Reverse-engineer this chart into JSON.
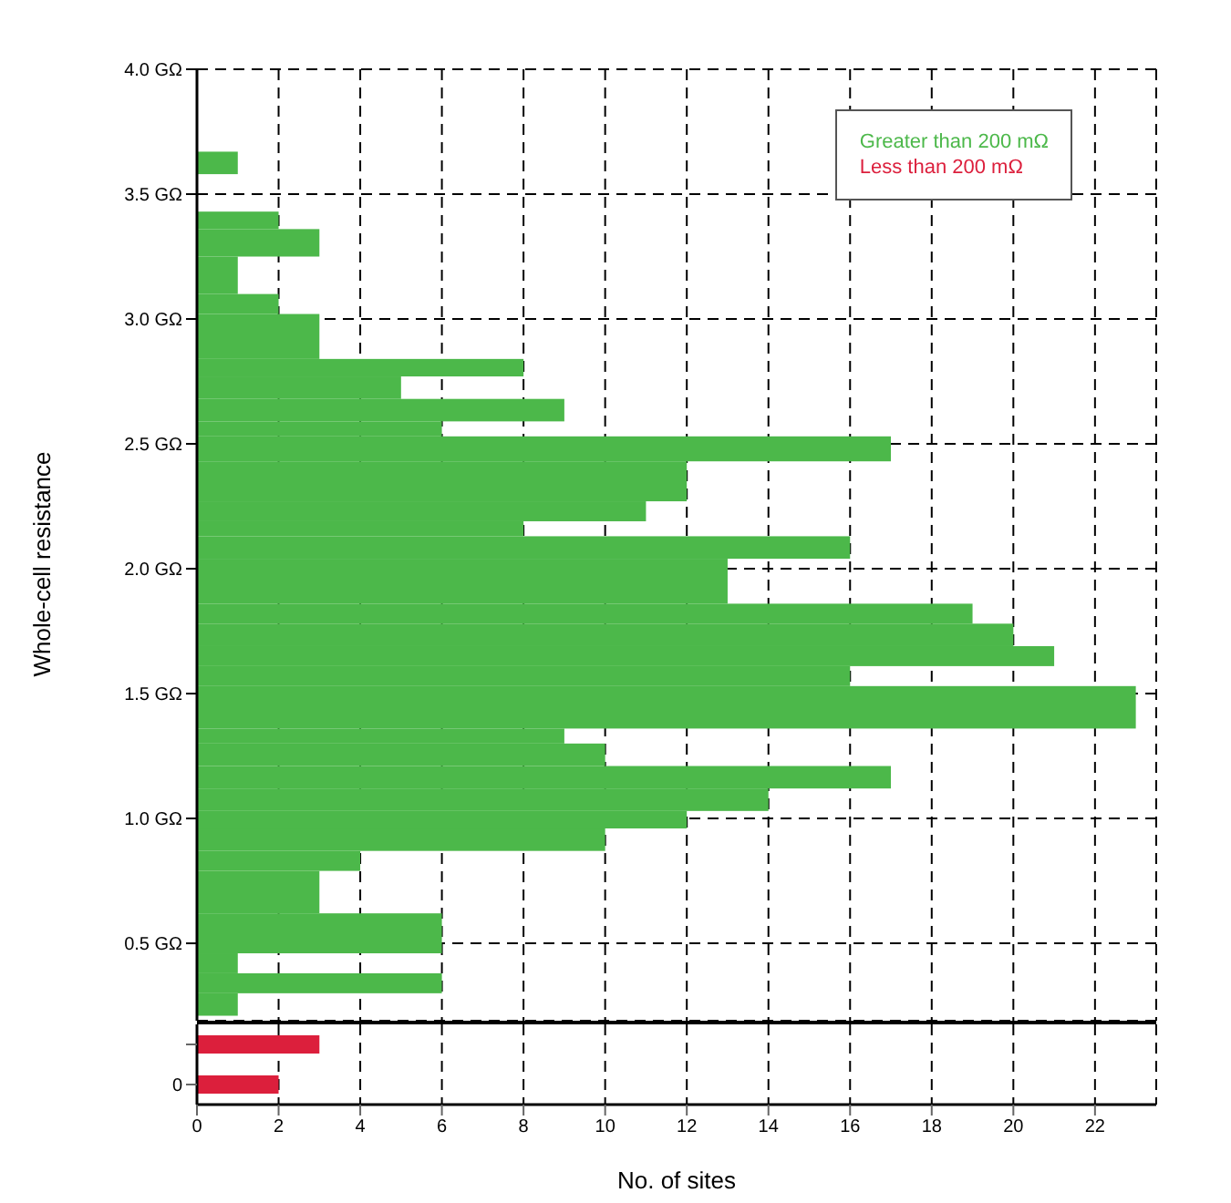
{
  "chart_data": [
    {
      "type": "histogram",
      "orientation": "horizontal",
      "ylabel": "Whole-cell resistance",
      "bins": [
        0.21,
        0.3,
        0.38,
        0.46,
        0.62,
        0.79,
        0.87,
        0.96,
        1.03,
        1.12,
        1.21,
        1.3,
        1.36,
        1.53,
        1.61,
        1.69,
        1.78,
        1.86,
        2.04,
        2.13,
        2.19,
        2.27,
        2.43,
        2.53,
        2.59,
        2.68,
        2.77,
        2.84,
        3.02,
        3.1,
        3.25,
        3.36,
        3.43,
        3.58,
        3.67
      ],
      "series": [
        {
          "name": "Greater than 200 mΩ",
          "color": "#4cb84a",
          "values": [
            1,
            6,
            1,
            6,
            3,
            4,
            10,
            12,
            14,
            17,
            10,
            9,
            23,
            16,
            21,
            20,
            19,
            13,
            16,
            8,
            11,
            12,
            17,
            6,
            9,
            5,
            8,
            3,
            2,
            1,
            3,
            2,
            0,
            1
          ]
        }
      ],
      "xlim": [
        0,
        23.5
      ],
      "xticks": [
        0,
        2,
        4,
        6,
        8,
        10,
        12,
        14,
        16,
        18,
        20,
        22
      ],
      "ylim": [
        0.19,
        4.0
      ],
      "yticks": [
        {
          "value": 0.5,
          "label": "0.5 GΩ"
        },
        {
          "value": 1.0,
          "label": "1.0 GΩ"
        },
        {
          "value": 1.5,
          "label": "1.5 GΩ"
        },
        {
          "value": 2.0,
          "label": "2.0 GΩ"
        },
        {
          "value": 2.5,
          "label": "2.5 GΩ"
        },
        {
          "value": 3.0,
          "label": "3.0 GΩ"
        },
        {
          "value": 3.5,
          "label": "3.5 GΩ"
        },
        {
          "value": 4.0,
          "label": "4.0 GΩ"
        }
      ],
      "grid": true,
      "legend": "top right",
      "tick_labels": "y"
    },
    {
      "type": "bar",
      "orientation": "horizontal",
      "xlabel": "No. of sites",
      "categories": [
        null,
        "0"
      ],
      "series": [
        {
          "name": "Less than 200 mΩ",
          "color": "#dc1f3c",
          "values": [
            3,
            2
          ]
        }
      ],
      "xlim": [
        0,
        23.5
      ],
      "xticks": [
        0,
        2,
        4,
        6,
        8,
        10,
        12,
        14,
        16,
        18,
        20,
        22
      ],
      "grid": "x"
    }
  ]
}
